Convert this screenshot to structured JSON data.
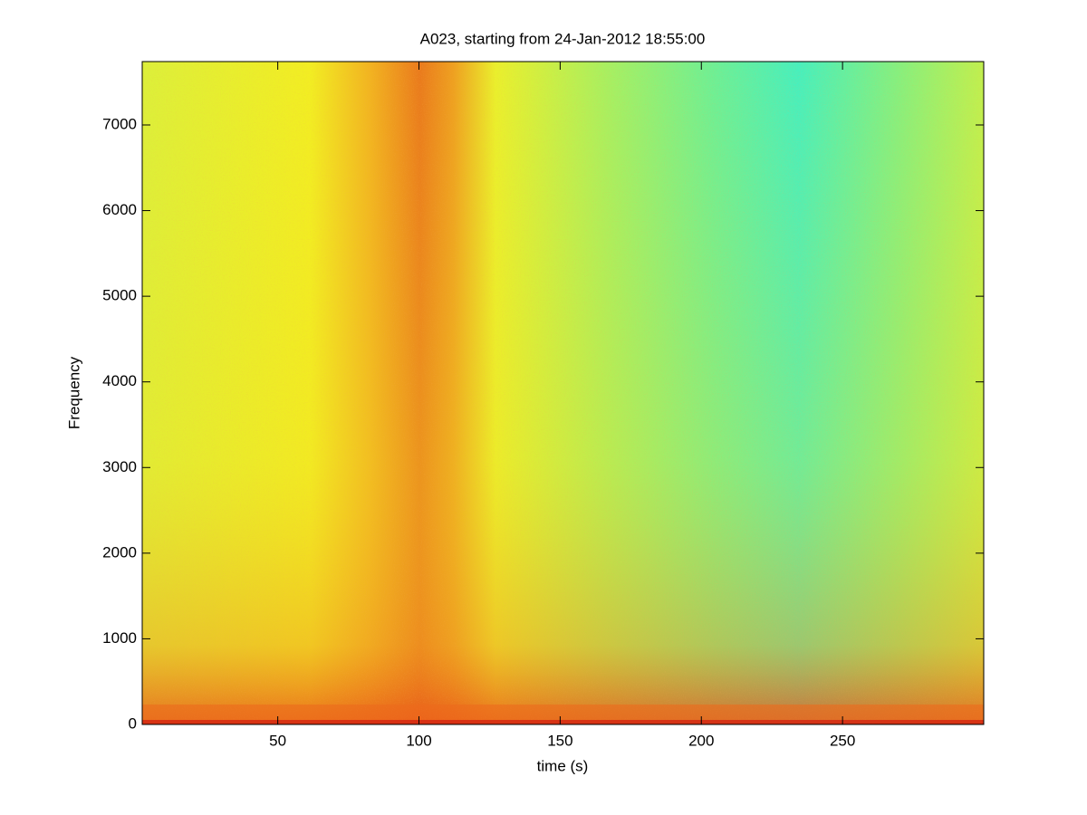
{
  "chart_data": {
    "type": "spectrogram",
    "title": "A023, starting from 24-Jan-2012 18:55:00",
    "xlabel": "time (s)",
    "ylabel": "Frequency",
    "xlim": [
      2,
      300
    ],
    "xticks": [
      50,
      100,
      150,
      200,
      250
    ],
    "ylim": [
      0,
      7740
    ],
    "yticks": [
      0,
      1000,
      2000,
      3000,
      4000,
      5000,
      6000,
      7000
    ]
  }
}
